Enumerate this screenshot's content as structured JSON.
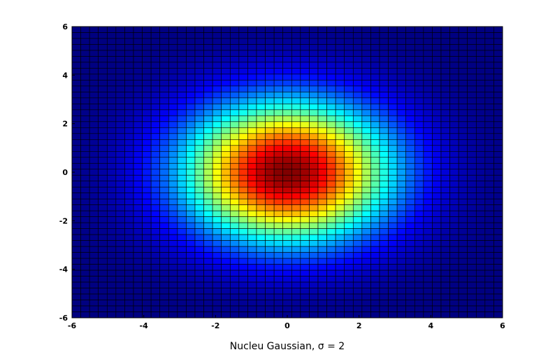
{
  "chart_data": {
    "type": "heatmap",
    "function": "gaussian",
    "sigma": 2,
    "xlabel": "Nucleu Gaussian, σ = 2",
    "xlim": [
      -6,
      6
    ],
    "ylim": [
      -6,
      6
    ],
    "xticks": [
      -6,
      -4,
      -2,
      0,
      2,
      4,
      6
    ],
    "yticks": [
      -6,
      -4,
      -2,
      0,
      2,
      4,
      6
    ],
    "x_tick_labels": [
      "-6",
      "-4",
      "-2",
      "0",
      "2",
      "4",
      "6"
    ],
    "y_tick_labels": [
      "-6",
      "-4",
      "-2",
      "0",
      "2",
      "4",
      "6"
    ],
    "grid_cells": 49,
    "colormap": "jet",
    "cell_edge_color": "#000000",
    "z_range": [
      0,
      1
    ]
  }
}
